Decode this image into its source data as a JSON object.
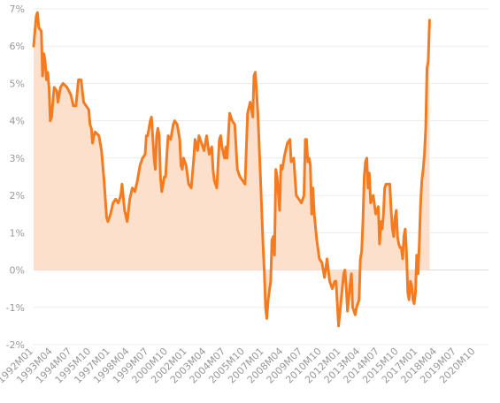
{
  "chart_data": {
    "type": "area",
    "title": "",
    "xlabel": "",
    "ylabel": "",
    "ylim": [
      -2,
      7
    ],
    "y_ticks": [
      -2,
      -1,
      0,
      1,
      2,
      3,
      4,
      5,
      6,
      7
    ],
    "y_tick_labels": [
      "-2%",
      "-1%",
      "0%",
      "1%",
      "2%",
      "3%",
      "4%",
      "5%",
      "6%",
      "7%"
    ],
    "x_start": "1992M01",
    "x_end": "2021M08",
    "x_tick_labels": [
      "1992M01",
      "1993M04",
      "1994M07",
      "1995M10",
      "1997M01",
      "1998M04",
      "1999M07",
      "2000M10",
      "2002M01",
      "2003M04",
      "2004M07",
      "2005M10",
      "2007M01",
      "2008M04",
      "2009M07",
      "2010M10",
      "2012M01",
      "2013M04",
      "2014M07",
      "2015M10",
      "2017M01",
      "2018M04",
      "2019M07",
      "2020M10"
    ],
    "grid": true,
    "legend": "none",
    "colors": {
      "line": "#f47b20",
      "fill": "#fde0cc",
      "grid": "#ebebeb",
      "tick_text": "#999999"
    },
    "series": [
      {
        "points": [
          [
            "1992M01",
            6.0
          ],
          [
            "1992M03",
            6.8
          ],
          [
            "1992M04",
            6.9
          ],
          [
            "1992M05",
            6.5
          ],
          [
            "1992M07",
            6.4
          ],
          [
            "1992M08",
            5.2
          ],
          [
            "1992M09",
            5.8
          ],
          [
            "1992M10",
            5.6
          ],
          [
            "1992M11",
            5.1
          ],
          [
            "1992M12",
            5.3
          ],
          [
            "1993M01",
            4.9
          ],
          [
            "1993M02",
            4.0
          ],
          [
            "1993M03",
            4.1
          ],
          [
            "1993M04",
            4.5
          ],
          [
            "1993M05",
            4.9
          ],
          [
            "1993M07",
            4.8
          ],
          [
            "1993M08",
            4.5
          ],
          [
            "1993M10",
            4.9
          ],
          [
            "1993M12",
            5.0
          ],
          [
            "1994M03",
            4.9
          ],
          [
            "1994M06",
            4.7
          ],
          [
            "1994M08",
            4.4
          ],
          [
            "1994M10",
            4.4
          ],
          [
            "1994M12",
            5.1
          ],
          [
            "1995M02",
            5.1
          ],
          [
            "1995M04",
            4.5
          ],
          [
            "1995M06",
            4.4
          ],
          [
            "1995M08",
            4.3
          ],
          [
            "1995M09",
            3.9
          ],
          [
            "1995M10",
            3.8
          ],
          [
            "1995M11",
            3.4
          ],
          [
            "1995M12",
            3.6
          ],
          [
            "1996M01",
            3.7
          ],
          [
            "1996M04",
            3.6
          ],
          [
            "1996M06",
            3.2
          ],
          [
            "1996M08",
            2.4
          ],
          [
            "1996M10",
            1.4
          ],
          [
            "1996M11",
            1.3
          ],
          [
            "1997M01",
            1.5
          ],
          [
            "1997M03",
            1.8
          ],
          [
            "1997M05",
            1.9
          ],
          [
            "1997M07",
            1.8
          ],
          [
            "1997M09",
            2.0
          ],
          [
            "1997M10",
            2.3
          ],
          [
            "1997M12",
            1.6
          ],
          [
            "1998M02",
            1.3
          ],
          [
            "1998M04",
            1.9
          ],
          [
            "1998M06",
            2.2
          ],
          [
            "1998M08",
            2.1
          ],
          [
            "1998M10",
            2.4
          ],
          [
            "1998M12",
            2.8
          ],
          [
            "1999M02",
            3.0
          ],
          [
            "1999M04",
            3.1
          ],
          [
            "1999M05",
            3.6
          ],
          [
            "1999M06",
            3.6
          ],
          [
            "1999M08",
            4.0
          ],
          [
            "1999M09",
            4.1
          ],
          [
            "1999M11",
            3.0
          ],
          [
            "1999M12",
            2.7
          ],
          [
            "2000M01",
            3.6
          ],
          [
            "2000M02",
            3.8
          ],
          [
            "2000M03",
            3.6
          ],
          [
            "2000M04",
            2.5
          ],
          [
            "2000M05",
            2.1
          ],
          [
            "2000M07",
            2.5
          ],
          [
            "2000M08",
            2.5
          ],
          [
            "2000M09",
            3.1
          ],
          [
            "2000M10",
            3.6
          ],
          [
            "2000M12",
            3.5
          ],
          [
            "2001M02",
            3.9
          ],
          [
            "2001M03",
            4.0
          ],
          [
            "2001M05",
            3.9
          ],
          [
            "2001M07",
            3.5
          ],
          [
            "2001M08",
            2.8
          ],
          [
            "2001M09",
            2.7
          ],
          [
            "2001M10",
            3.0
          ],
          [
            "2001M12",
            2.8
          ],
          [
            "2002M02",
            2.3
          ],
          [
            "2002M04",
            2.2
          ],
          [
            "2002M06",
            3.0
          ],
          [
            "2002M07",
            3.5
          ],
          [
            "2002M09",
            3.2
          ],
          [
            "2002M10",
            3.6
          ],
          [
            "2002M12",
            3.4
          ],
          [
            "2003M02",
            3.2
          ],
          [
            "2003M04",
            3.6
          ],
          [
            "2003M06",
            3.1
          ],
          [
            "2003M08",
            3.3
          ],
          [
            "2003M09",
            2.7
          ],
          [
            "2003M10",
            2.4
          ],
          [
            "2003M11",
            2.3
          ],
          [
            "2003M12",
            2.2
          ],
          [
            "2004M02",
            3.5
          ],
          [
            "2004M03",
            3.6
          ],
          [
            "2004M04",
            3.3
          ],
          [
            "2004M06",
            3.0
          ],
          [
            "2004M07",
            3.3
          ],
          [
            "2004M08",
            3.0
          ],
          [
            "2004M10",
            4.2
          ],
          [
            "2004M12",
            4.0
          ],
          [
            "2005M02",
            3.9
          ],
          [
            "2005M04",
            2.7
          ],
          [
            "2005M06",
            2.5
          ],
          [
            "2005M08",
            2.4
          ],
          [
            "2005M10",
            2.3
          ],
          [
            "2005M12",
            4.2
          ],
          [
            "2006M02",
            4.5
          ],
          [
            "2006M04",
            4.1
          ],
          [
            "2006M05",
            5.2
          ],
          [
            "2006M06",
            5.3
          ],
          [
            "2006M08",
            4.2
          ],
          [
            "2006M10",
            2.5
          ],
          [
            "2006M12",
            0.7
          ],
          [
            "2007M01",
            0.0
          ],
          [
            "2007M02",
            -1.0
          ],
          [
            "2007M03",
            -1.3
          ],
          [
            "2007M04",
            -0.8
          ],
          [
            "2007M06",
            -0.3
          ],
          [
            "2007M07",
            0.8
          ],
          [
            "2007M08",
            0.9
          ],
          [
            "2007M09",
            0.4
          ],
          [
            "2007M10",
            2.7
          ],
          [
            "2007M11",
            2.5
          ],
          [
            "2008M01",
            1.6
          ],
          [
            "2008M02",
            2.8
          ],
          [
            "2008M03",
            2.7
          ],
          [
            "2008M05",
            3.1
          ],
          [
            "2008M07",
            3.4
          ],
          [
            "2008M09",
            3.5
          ],
          [
            "2008M10",
            2.9
          ],
          [
            "2008M12",
            3.0
          ],
          [
            "2009M02",
            2.0
          ],
          [
            "2009M04",
            1.9
          ],
          [
            "2009M06",
            1.8
          ],
          [
            "2009M08",
            2.0
          ],
          [
            "2009M09",
            3.5
          ],
          [
            "2009M10",
            3.5
          ],
          [
            "2009M11",
            2.9
          ],
          [
            "2009M12",
            3.0
          ],
          [
            "2010M01",
            2.8
          ],
          [
            "2010M02",
            1.5
          ],
          [
            "2010M03",
            2.2
          ],
          [
            "2010M04",
            1.5
          ],
          [
            "2010M06",
            0.8
          ],
          [
            "2010M08",
            0.3
          ],
          [
            "2010M10",
            0.2
          ],
          [
            "2010M12",
            -0.2
          ],
          [
            "2011M02",
            0.3
          ],
          [
            "2011M04",
            -0.3
          ],
          [
            "2011M06",
            -0.5
          ],
          [
            "2011M08",
            -0.3
          ],
          [
            "2011M09",
            -0.3
          ],
          [
            "2011M11",
            -1.5
          ],
          [
            "2012M01",
            -0.8
          ],
          [
            "2012M03",
            -0.1
          ],
          [
            "2012M04",
            0.0
          ],
          [
            "2012M05",
            -0.5
          ],
          [
            "2012M06",
            -1.1
          ],
          [
            "2012M08",
            -0.4
          ],
          [
            "2012M09",
            -0.1
          ],
          [
            "2012M10",
            -1.0
          ],
          [
            "2012M12",
            -1.2
          ],
          [
            "2013M01",
            -1.0
          ],
          [
            "2013M03",
            -0.8
          ],
          [
            "2013M04",
            0.3
          ],
          [
            "2013M05",
            0.5
          ],
          [
            "2013M06",
            1.3
          ],
          [
            "2013M07",
            2.5
          ],
          [
            "2013M08",
            2.9
          ],
          [
            "2013M09",
            3.0
          ],
          [
            "2013M10",
            2.2
          ],
          [
            "2013M11",
            2.6
          ],
          [
            "2013M12",
            1.8
          ],
          [
            "2014M02",
            2.0
          ],
          [
            "2014M04",
            1.5
          ],
          [
            "2014M06",
            1.7
          ],
          [
            "2014M07",
            0.7
          ],
          [
            "2014M08",
            1.3
          ],
          [
            "2014M09",
            1.1
          ],
          [
            "2014M10",
            1.5
          ],
          [
            "2014M11",
            2.2
          ],
          [
            "2014M12",
            2.3
          ],
          [
            "2015M02",
            2.3
          ],
          [
            "2015M03",
            2.3
          ],
          [
            "2015M04",
            1.6
          ],
          [
            "2015M05",
            1.1
          ],
          [
            "2015M06",
            0.9
          ],
          [
            "2015M07",
            1.4
          ],
          [
            "2015M08",
            1.6
          ],
          [
            "2015M09",
            0.9
          ],
          [
            "2015M10",
            0.7
          ],
          [
            "2015M11",
            0.6
          ],
          [
            "2015M12",
            0.6
          ],
          [
            "2016M01",
            0.3
          ],
          [
            "2016M02",
            0.9
          ],
          [
            "2016M03",
            1.1
          ],
          [
            "2016M04",
            0.5
          ],
          [
            "2016M05",
            -0.6
          ],
          [
            "2016M06",
            -0.8
          ],
          [
            "2016M07",
            -0.3
          ],
          [
            "2016M08",
            -0.4
          ],
          [
            "2016M09",
            -0.8
          ],
          [
            "2016M10",
            -0.9
          ],
          [
            "2016M11",
            -0.6
          ],
          [
            "2016M12",
            0.4
          ],
          [
            "2017M01",
            -0.1
          ],
          [
            "2017M02",
            0.7
          ],
          [
            "2017M03",
            1.8
          ],
          [
            "2017M04",
            2.4
          ],
          [
            "2017M05",
            2.7
          ],
          [
            "2017M06",
            3.1
          ],
          [
            "2017M07",
            3.8
          ],
          [
            "2017M08",
            5.4
          ],
          [
            "2017M09",
            5.6
          ],
          [
            "2017M10",
            6.7
          ]
        ]
      }
    ]
  }
}
